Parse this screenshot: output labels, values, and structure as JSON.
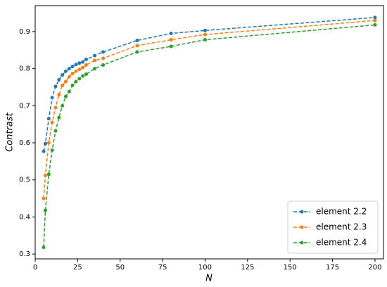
{
  "chart_data": {
    "type": "line",
    "x_label": "N",
    "y_label": "Contrast",
    "x": [
      5,
      6,
      8,
      10,
      12,
      14,
      16,
      18,
      20,
      22,
      24,
      26,
      28,
      30,
      35,
      40,
      60,
      80,
      100,
      200
    ],
    "series": [
      {
        "name": "element 2.2",
        "color": "#1f77b4",
        "values": [
          0.577,
          0.598,
          0.665,
          0.722,
          0.752,
          0.77,
          0.783,
          0.793,
          0.8,
          0.806,
          0.811,
          0.815,
          0.818,
          0.825,
          0.835,
          0.845,
          0.876,
          0.895,
          0.903,
          0.938
        ]
      },
      {
        "name": "element 2.3",
        "color": "#ff7f0e",
        "values": [
          0.45,
          0.512,
          0.6,
          0.655,
          0.695,
          0.73,
          0.755,
          0.765,
          0.778,
          0.787,
          0.793,
          0.798,
          0.803,
          0.81,
          0.822,
          0.828,
          0.862,
          0.878,
          0.892,
          0.93
        ]
      },
      {
        "name": "element 2.4",
        "color": "#2ca02c",
        "values": [
          0.318,
          0.418,
          0.515,
          0.58,
          0.632,
          0.668,
          0.7,
          0.725,
          0.738,
          0.755,
          0.765,
          0.773,
          0.78,
          0.785,
          0.8,
          0.81,
          0.845,
          0.86,
          0.878,
          0.918
        ]
      }
    ],
    "xlim": [
      0,
      205
    ],
    "ylim": [
      0.287,
      0.97
    ],
    "xticks": [
      0,
      25,
      50,
      75,
      100,
      125,
      150,
      175,
      200
    ],
    "yticks": [
      0.3,
      0.4,
      0.5,
      0.6,
      0.7,
      0.8,
      0.9
    ],
    "legend": "lower right"
  }
}
